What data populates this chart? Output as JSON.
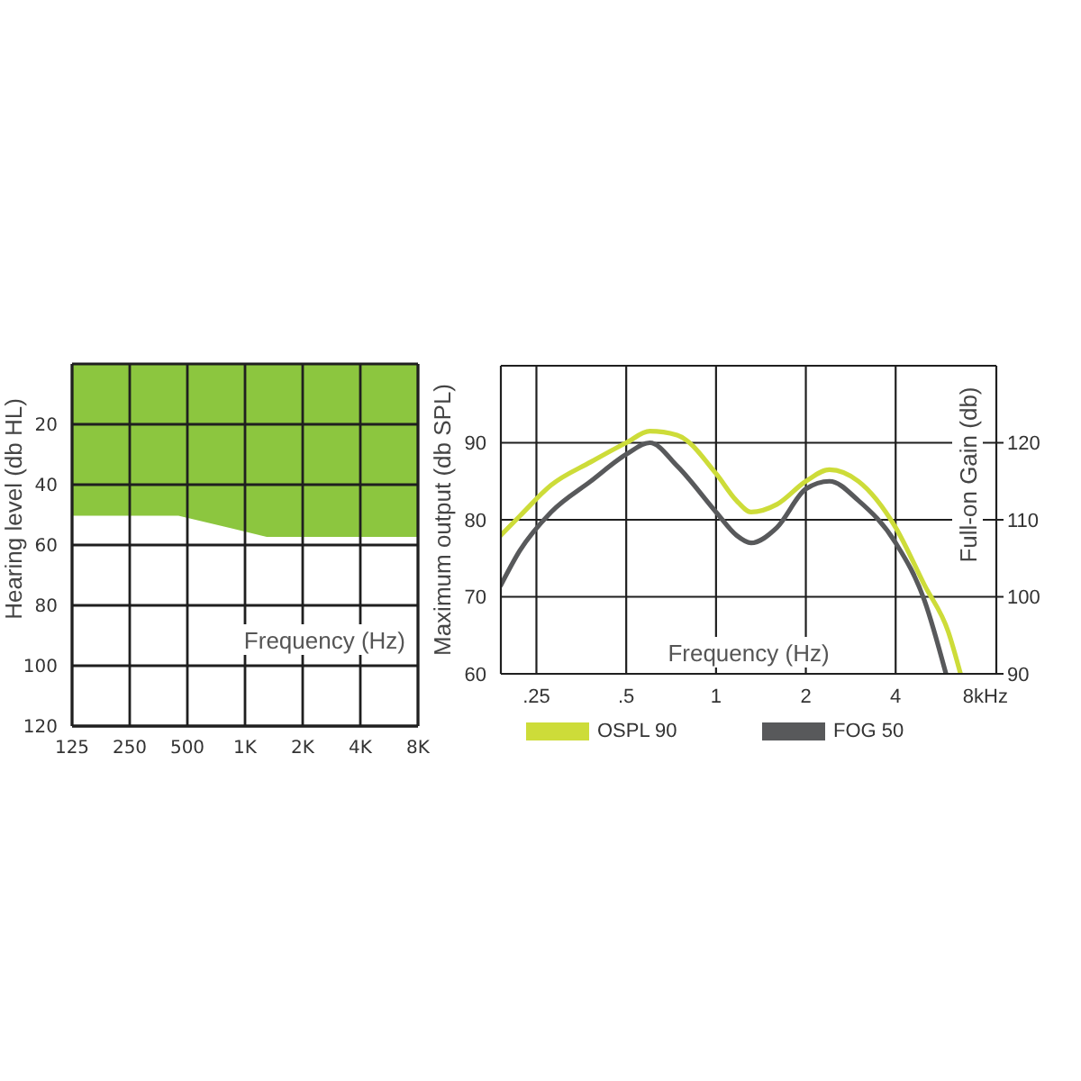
{
  "chart_data": [
    {
      "type": "area",
      "xlabel": "Frequency (Hz)",
      "ylabel": "Hearing level (db HL)",
      "x": [
        125,
        250,
        450,
        1300,
        8000
      ],
      "values": [
        50,
        50,
        50,
        57,
        57
      ],
      "color": "#8cc63f",
      "xlim": [
        125,
        8000
      ],
      "xticks": [
        125,
        250,
        500,
        {
          "value": 1000,
          "label": "1K"
        },
        {
          "value": 2000,
          "label": "2K"
        },
        {
          "value": 4000,
          "label": "4K"
        },
        {
          "value": 8000,
          "label": "8K"
        }
      ],
      "ylim": [
        120,
        0
      ],
      "yticks": [
        20,
        40,
        60,
        80,
        100,
        120
      ],
      "log": "x",
      "grid": true
    },
    {
      "type": "line",
      "xlabel": "Frequency (Hz)",
      "ylabel": "Maximum output (db SPL)",
      "y2label": "Full-on Gain (db)",
      "xlim": [
        0.19,
        8.7
      ],
      "xticks": [
        {
          "value": 0.25,
          "label": ".25"
        },
        {
          "value": 0.5,
          "label": ".5"
        },
        1,
        2,
        4,
        {
          "value": 8,
          "label": "8kHz"
        }
      ],
      "ylim": [
        60,
        100
      ],
      "yticks": [
        60,
        70,
        80,
        90
      ],
      "y2lim": [
        90,
        130
      ],
      "y2ticks": [
        90,
        100,
        110,
        120
      ],
      "log": "x",
      "grid": true,
      "legend": "bottom",
      "series": [
        {
          "name": "OSPL 90",
          "color": "#cddc39",
          "x": [
            0.19,
            0.22,
            0.28,
            0.38,
            0.5,
            0.6,
            0.74,
            1,
            1.17,
            1.31,
            1.6,
            2,
            2.4,
            3,
            4,
            5,
            6,
            6.6
          ],
          "values": [
            78,
            80.5,
            84.5,
            87.5,
            90,
            91.5,
            91,
            86,
            82.5,
            81,
            82,
            85,
            86.5,
            85,
            79,
            71.5,
            65.5,
            60
          ]
        },
        {
          "name": "FOG 50",
          "color": "#58595b",
          "axis": "y2",
          "x": [
            0.19,
            0.22,
            0.28,
            0.38,
            0.5,
            0.6,
            0.74,
            1,
            1.17,
            1.31,
            1.6,
            2,
            2.4,
            3,
            4,
            5,
            5.9
          ],
          "values": [
            101.5,
            106,
            111,
            115,
            118.5,
            120,
            117,
            111,
            108,
            107,
            109,
            114,
            115,
            112.5,
            107,
            99.5,
            90
          ]
        }
      ]
    }
  ]
}
